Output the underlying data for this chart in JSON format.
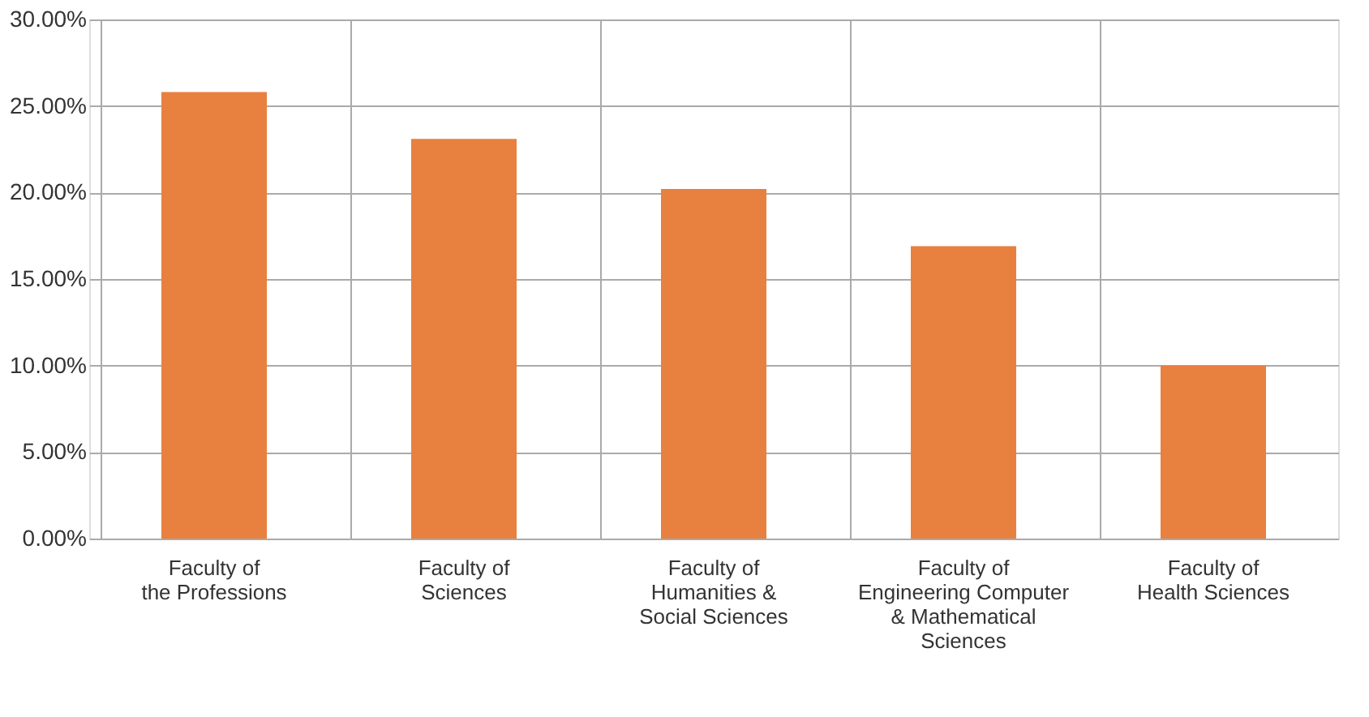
{
  "chart_data": {
    "type": "bar",
    "categories": [
      "Faculty of\nthe Professions",
      "Faculty of\nSciences",
      "Faculty of\nHumanities &\nSocial Sciences",
      "Faculty of\nEngineering Computer\n& Mathematical\nSciences",
      "Faculty of\nHealth Sciences"
    ],
    "values": [
      25.8,
      23.1,
      20.2,
      16.9,
      10.0
    ],
    "color": "#e8803f",
    "ylim": [
      0,
      30
    ],
    "yticks": [
      {
        "value": 0,
        "label": "0.00%"
      },
      {
        "value": 5,
        "label": "5.00%"
      },
      {
        "value": 10,
        "label": "10.00%"
      },
      {
        "value": 15,
        "label": "15.00%"
      },
      {
        "value": 20,
        "label": "20.00%"
      },
      {
        "value": 25,
        "label": "25.00%"
      },
      {
        "value": 30,
        "label": "30.00%"
      }
    ],
    "grid": true
  }
}
